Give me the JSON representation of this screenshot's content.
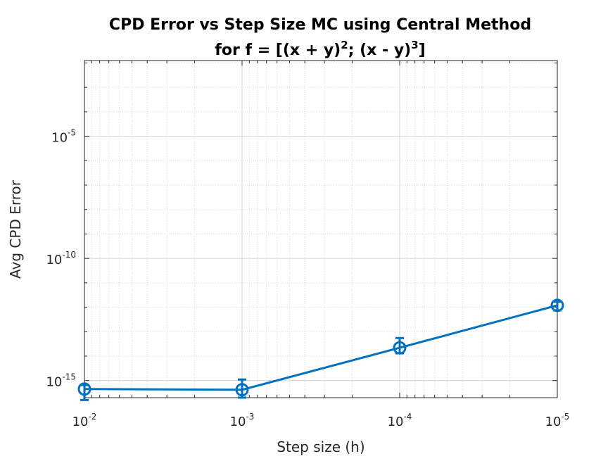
{
  "chart_data": {
    "type": "line",
    "title_line1": "CPD Error vs Step Size MC using Central Method",
    "title_line2_prefix": "for f = [(x + y)",
    "title_line2_exp1": "2",
    "title_line2_middle": "; (x - y)",
    "title_line2_exp2": "3",
    "title_line2_suffix": "]",
    "xlabel": "Step size (h)",
    "ylabel": "Avg CPD Error",
    "x_scale": "log",
    "y_scale": "log",
    "x_reversed": true,
    "xlim": [
      0.01,
      1e-05
    ],
    "ylim_log10": [
      -15.7,
      -1.9
    ],
    "grid": true,
    "minor_grid": true,
    "x_ticks": [
      {
        "base": "10",
        "exp": "-2",
        "value": 0.01
      },
      {
        "base": "10",
        "exp": "-3",
        "value": 0.001
      },
      {
        "base": "10",
        "exp": "-4",
        "value": 0.0001
      },
      {
        "base": "10",
        "exp": "-5",
        "value": 1e-05
      }
    ],
    "y_ticks": [
      {
        "base": "10",
        "exp": "-5",
        "value": 1e-05
      },
      {
        "base": "10",
        "exp": "-10",
        "value": 1e-10
      },
      {
        "base": "10",
        "exp": "-15",
        "value": 1e-15
      }
    ],
    "series": [
      {
        "x": [
          0.01,
          0.001,
          0.0001,
          1e-05
        ],
        "y": [
          4.5e-16,
          4.2e-16,
          2.2e-14,
          1.2e-12
        ],
        "y_low": [
          1.6e-16,
          2e-16,
          1.3e-14,
          7.5e-13
        ],
        "y_high": [
          6.5e-16,
          1.1e-15,
          5.5e-14,
          1.7e-12
        ],
        "marker": "circle",
        "color": "#0072BD"
      }
    ]
  }
}
